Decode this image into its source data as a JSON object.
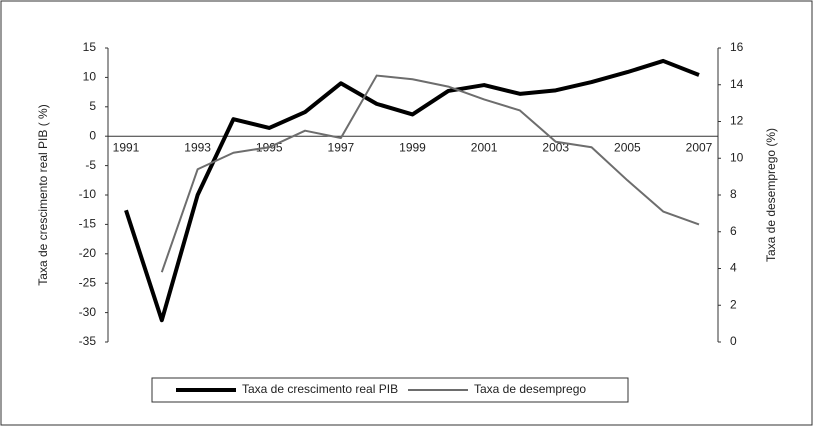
{
  "chart_data": {
    "type": "line",
    "y_label": "Taxa de crescimento real PIB ( %)",
    "y2_label": "Taxa de desemprego (%)",
    "categories": [
      "1991",
      null,
      "1993",
      null,
      "1995",
      null,
      "1997",
      null,
      "1999",
      null,
      "2001",
      null,
      "2003",
      null,
      "2005",
      null,
      "2007"
    ],
    "series": [
      {
        "name": "Taxa de crescimento real PIB",
        "color": "#000000",
        "width": 4,
        "values": [
          -12.6,
          -31.3,
          -10,
          2.9,
          1.4,
          4.1,
          9,
          5.5,
          3.7,
          7.7,
          8.7,
          7.2,
          7.8,
          9.2,
          10.9,
          12.8,
          10.4
        ]
      },
      {
        "name": "Taxa de desemprego",
        "color": "#6d6d6d",
        "width": 2,
        "axis": "y2",
        "values": [
          null,
          3.8,
          9.4,
          10.3,
          10.6,
          11.5,
          11.1,
          14.5,
          14.3,
          13.9,
          13.2,
          12.6,
          10.9,
          10.6,
          8.8,
          7.1,
          6.4
        ]
      }
    ],
    "ylim": [
      -35,
      15
    ],
    "yticks": [
      15,
      10,
      5,
      0,
      -5,
      -10,
      -15,
      -20,
      -25,
      -30,
      -35
    ],
    "y2lim": [
      0,
      16
    ],
    "y2ticks": [
      16,
      14,
      12,
      10,
      8,
      6,
      4,
      2,
      0
    ]
  }
}
